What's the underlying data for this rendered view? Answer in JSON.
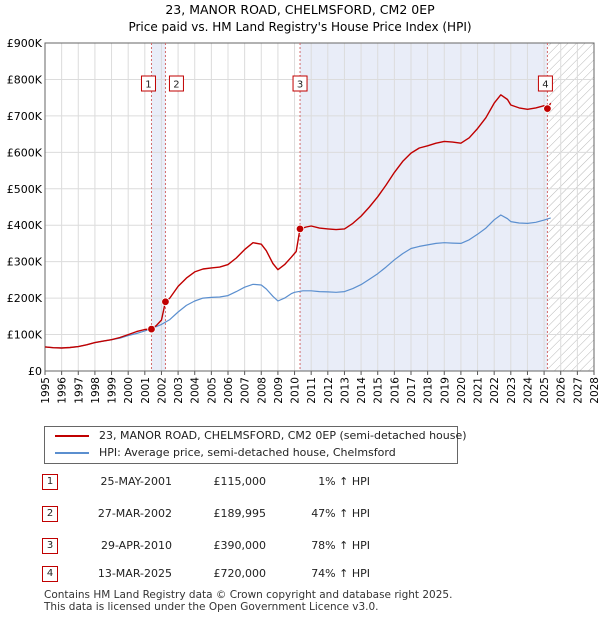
{
  "chart_data": {
    "type": "line",
    "title": "23, MANOR ROAD, CHELMSFORD, CM2 0EP",
    "subtitle": "Price paid vs. HM Land Registry's House Price Index (HPI)",
    "xlim": [
      1995,
      2028
    ],
    "ylim": [
      0,
      900000
    ],
    "x_ticks": [
      1995,
      1996,
      1997,
      1998,
      1999,
      2000,
      2001,
      2002,
      2003,
      2004,
      2005,
      2006,
      2007,
      2008,
      2009,
      2010,
      2011,
      2012,
      2013,
      2014,
      2015,
      2016,
      2017,
      2018,
      2019,
      2020,
      2021,
      2022,
      2023,
      2024,
      2025,
      2026,
      2027,
      2028
    ],
    "y_ticks": [
      0,
      100000,
      200000,
      300000,
      400000,
      500000,
      600000,
      700000,
      800000,
      900000
    ],
    "y_tick_labels": [
      "£0",
      "£100K",
      "£200K",
      "£300K",
      "£400K",
      "£500K",
      "£600K",
      "£700K",
      "£800K",
      "£900K"
    ],
    "grid": true,
    "future_hatch_from": 2025.25,
    "shaded_periods": [
      [
        2001.4,
        2002.24
      ],
      [
        2010.33,
        2025.2
      ]
    ],
    "series": [
      {
        "name": "23, MANOR ROAD, CHELMSFORD, CM2 0EP (semi-detached house)",
        "color": "#c00000",
        "points": [
          [
            1995.0,
            66000
          ],
          [
            1995.5,
            64000
          ],
          [
            1996.0,
            63000
          ],
          [
            1996.5,
            64500
          ],
          [
            1997.0,
            67000
          ],
          [
            1997.5,
            72000
          ],
          [
            1998.0,
            78000
          ],
          [
            1998.5,
            82000
          ],
          [
            1999.0,
            86000
          ],
          [
            1999.5,
            92000
          ],
          [
            2000.0,
            100000
          ],
          [
            2000.5,
            108000
          ],
          [
            2001.0,
            114000
          ],
          [
            2001.4,
            115000
          ],
          [
            2001.7,
            125000
          ],
          [
            2002.0,
            140000
          ],
          [
            2002.24,
            189995
          ],
          [
            2002.5,
            200000
          ],
          [
            2003.0,
            232000
          ],
          [
            2003.5,
            255000
          ],
          [
            2004.0,
            272000
          ],
          [
            2004.5,
            280000
          ],
          [
            2005.0,
            283000
          ],
          [
            2005.5,
            285000
          ],
          [
            2006.0,
            292000
          ],
          [
            2006.5,
            310000
          ],
          [
            2007.0,
            333000
          ],
          [
            2007.5,
            352000
          ],
          [
            2008.0,
            348000
          ],
          [
            2008.3,
            330000
          ],
          [
            2008.7,
            295000
          ],
          [
            2009.0,
            278000
          ],
          [
            2009.4,
            292000
          ],
          [
            2009.8,
            312000
          ],
          [
            2010.1,
            328000
          ],
          [
            2010.33,
            390000
          ],
          [
            2010.7,
            395000
          ],
          [
            2011.0,
            398000
          ],
          [
            2011.5,
            392000
          ],
          [
            2012.0,
            390000
          ],
          [
            2012.5,
            388000
          ],
          [
            2013.0,
            390000
          ],
          [
            2013.5,
            405000
          ],
          [
            2014.0,
            425000
          ],
          [
            2014.5,
            450000
          ],
          [
            2015.0,
            478000
          ],
          [
            2015.5,
            510000
          ],
          [
            2016.0,
            545000
          ],
          [
            2016.5,
            575000
          ],
          [
            2017.0,
            598000
          ],
          [
            2017.5,
            612000
          ],
          [
            2018.0,
            618000
          ],
          [
            2018.5,
            625000
          ],
          [
            2019.0,
            630000
          ],
          [
            2019.5,
            628000
          ],
          [
            2020.0,
            625000
          ],
          [
            2020.5,
            640000
          ],
          [
            2021.0,
            665000
          ],
          [
            2021.5,
            695000
          ],
          [
            2022.0,
            735000
          ],
          [
            2022.4,
            758000
          ],
          [
            2022.8,
            745000
          ],
          [
            2023.0,
            730000
          ],
          [
            2023.5,
            722000
          ],
          [
            2024.0,
            718000
          ],
          [
            2024.5,
            722000
          ],
          [
            2025.0,
            728000
          ],
          [
            2025.2,
            720000
          ],
          [
            2025.4,
            735000
          ]
        ]
      },
      {
        "name": "HPI: Average price, semi-detached house, Chelmsford",
        "color": "#5b8fcf",
        "points": [
          [
            1995.0,
            66000
          ],
          [
            1995.5,
            64000
          ],
          [
            1996.0,
            63000
          ],
          [
            1996.5,
            64500
          ],
          [
            1997.0,
            67000
          ],
          [
            1997.5,
            72000
          ],
          [
            1998.0,
            78000
          ],
          [
            1998.5,
            82000
          ],
          [
            1999.0,
            86000
          ],
          [
            1999.5,
            90000
          ],
          [
            2000.0,
            97000
          ],
          [
            2000.5,
            103000
          ],
          [
            2001.0,
            110000
          ],
          [
            2001.5,
            118000
          ],
          [
            2002.0,
            128000
          ],
          [
            2002.5,
            141000
          ],
          [
            2003.0,
            162000
          ],
          [
            2003.5,
            180000
          ],
          [
            2004.0,
            192000
          ],
          [
            2004.5,
            200000
          ],
          [
            2005.0,
            202000
          ],
          [
            2005.5,
            203000
          ],
          [
            2006.0,
            207000
          ],
          [
            2006.5,
            218000
          ],
          [
            2007.0,
            230000
          ],
          [
            2007.5,
            238000
          ],
          [
            2008.0,
            236000
          ],
          [
            2008.3,
            225000
          ],
          [
            2008.7,
            205000
          ],
          [
            2009.0,
            192000
          ],
          [
            2009.4,
            200000
          ],
          [
            2009.8,
            212000
          ],
          [
            2010.0,
            216000
          ],
          [
            2010.5,
            220000
          ],
          [
            2011.0,
            220000
          ],
          [
            2011.5,
            218000
          ],
          [
            2012.0,
            217000
          ],
          [
            2012.5,
            216000
          ],
          [
            2013.0,
            218000
          ],
          [
            2013.5,
            226000
          ],
          [
            2014.0,
            237000
          ],
          [
            2014.5,
            252000
          ],
          [
            2015.0,
            267000
          ],
          [
            2015.5,
            285000
          ],
          [
            2016.0,
            305000
          ],
          [
            2016.5,
            322000
          ],
          [
            2017.0,
            336000
          ],
          [
            2017.5,
            342000
          ],
          [
            2018.0,
            346000
          ],
          [
            2018.5,
            350000
          ],
          [
            2019.0,
            352000
          ],
          [
            2019.5,
            351000
          ],
          [
            2020.0,
            350000
          ],
          [
            2020.5,
            360000
          ],
          [
            2021.0,
            375000
          ],
          [
            2021.5,
            392000
          ],
          [
            2022.0,
            415000
          ],
          [
            2022.4,
            428000
          ],
          [
            2022.8,
            418000
          ],
          [
            2023.0,
            410000
          ],
          [
            2023.5,
            406000
          ],
          [
            2024.0,
            405000
          ],
          [
            2024.5,
            408000
          ],
          [
            2025.0,
            414000
          ],
          [
            2025.4,
            420000
          ]
        ]
      }
    ],
    "sales": [
      {
        "label": "1",
        "date": "25-MAY-2001",
        "x": 2001.4,
        "price": 115000,
        "price_text": "£115,000",
        "hpi_text": "1% ↑ HPI"
      },
      {
        "label": "2",
        "date": "27-MAR-2002",
        "x": 2002.24,
        "price": 189995,
        "price_text": "£189,995",
        "hpi_text": "47% ↑ HPI"
      },
      {
        "label": "3",
        "date": "29-APR-2010",
        "x": 2010.33,
        "price": 390000,
        "price_text": "£390,000",
        "hpi_text": "78% ↑ HPI"
      },
      {
        "label": "4",
        "date": "13-MAR-2025",
        "x": 2025.2,
        "price": 720000,
        "price_text": "£720,000",
        "hpi_text": "74% ↑ HPI"
      }
    ]
  },
  "legend": {
    "property_label": "23, MANOR ROAD, CHELMSFORD, CM2 0EP (semi-detached house)",
    "hpi_label": "HPI: Average price, semi-detached house, Chelmsford",
    "property_color": "#c00000",
    "hpi_color": "#5b8fcf"
  },
  "footer": {
    "line1": "Contains HM Land Registry data © Crown copyright and database right 2025.",
    "line2": "This data is licensed under the Open Government Licence v3.0."
  }
}
